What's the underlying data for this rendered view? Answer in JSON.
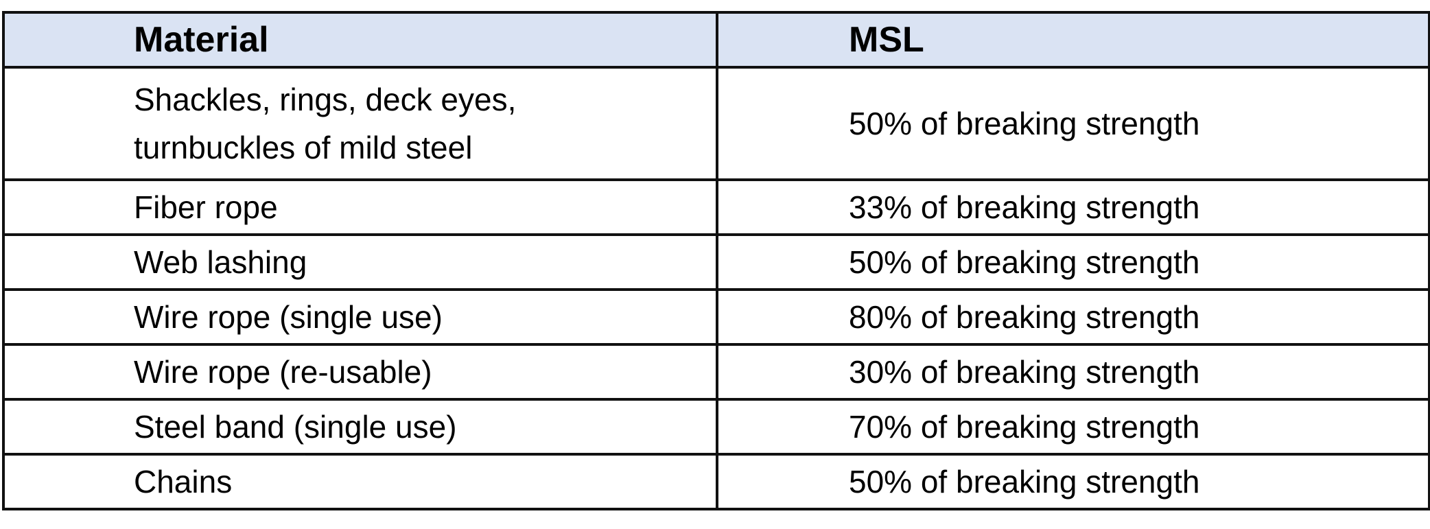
{
  "table": {
    "headers": {
      "material": "Material",
      "msl": "MSL"
    },
    "rows": [
      {
        "material_line1": "Shackles, rings, deck eyes,",
        "material_line2": "turnbuckles of mild steel",
        "msl": "50% of breaking strength"
      },
      {
        "material": "Fiber rope",
        "msl": "33% of breaking strength"
      },
      {
        "material": "Web lashing",
        "msl": "50% of breaking strength"
      },
      {
        "material": "Wire rope (single use)",
        "msl": "80% of breaking strength"
      },
      {
        "material": "Wire rope (re-usable)",
        "msl": "30% of breaking strength"
      },
      {
        "material": "Steel band (single use)",
        "msl": "70% of breaking strength"
      },
      {
        "material": "Chains",
        "msl": "50% of breaking strength"
      }
    ]
  }
}
